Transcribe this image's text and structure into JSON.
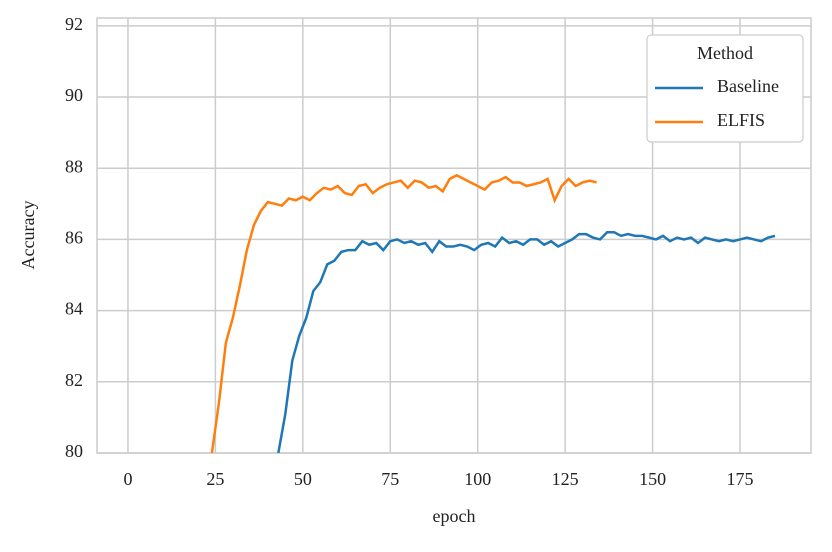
{
  "chart_data": {
    "type": "line",
    "x_label": "epoch",
    "y_label": "Accuracy",
    "xlim": [
      -8.85,
      195.3
    ],
    "ylim": [
      80,
      92.22
    ],
    "xticks": [
      0,
      25,
      50,
      75,
      100,
      125,
      150,
      175
    ],
    "yticks": [
      80,
      82,
      84,
      86,
      88,
      90,
      92
    ],
    "grid": true,
    "legend_title": "Method",
    "legend_position": "upper right",
    "series": [
      {
        "name": "Baseline",
        "color": "#1f77b4",
        "x": [
          43,
          45,
          47,
          49,
          51,
          53,
          55,
          57,
          59,
          61,
          63,
          65,
          67,
          69,
          71,
          73,
          75,
          77,
          79,
          81,
          83,
          85,
          87,
          89,
          91,
          93,
          95,
          97,
          99,
          101,
          103,
          105,
          107,
          109,
          111,
          113,
          115,
          117,
          119,
          121,
          123,
          125,
          127,
          129,
          131,
          133,
          135,
          137,
          139,
          141,
          143,
          145,
          147,
          149,
          151,
          153,
          155,
          157,
          159,
          161,
          163,
          165,
          167,
          169,
          171,
          173,
          175,
          177,
          179,
          181,
          183,
          185
        ],
        "values": [
          80.0,
          81.1,
          82.6,
          83.3,
          83.8,
          84.55,
          84.8,
          85.3,
          85.4,
          85.65,
          85.7,
          85.7,
          85.95,
          85.85,
          85.9,
          85.7,
          85.95,
          86.0,
          85.9,
          85.95,
          85.85,
          85.9,
          85.65,
          85.95,
          85.8,
          85.8,
          85.85,
          85.8,
          85.7,
          85.85,
          85.9,
          85.8,
          86.05,
          85.9,
          85.95,
          85.85,
          86.0,
          86.0,
          85.85,
          85.95,
          85.8,
          85.9,
          86.0,
          86.15,
          86.15,
          86.05,
          86.0,
          86.2,
          86.2,
          86.1,
          86.15,
          86.1,
          86.1,
          86.05,
          86.0,
          86.1,
          85.95,
          86.05,
          86.0,
          86.05,
          85.9,
          86.05,
          86.0,
          85.95,
          86.0,
          85.95,
          86.0,
          86.05,
          86.0,
          85.95,
          86.05,
          86.1
        ]
      },
      {
        "name": "ELFIS",
        "color": "#ff7f0e",
        "x": [
          24,
          26,
          28,
          30,
          32,
          34,
          36,
          38,
          40,
          42,
          44,
          46,
          48,
          50,
          52,
          54,
          56,
          58,
          60,
          62,
          64,
          66,
          68,
          70,
          72,
          74,
          76,
          78,
          80,
          82,
          84,
          86,
          88,
          90,
          92,
          94,
          96,
          98,
          100,
          102,
          104,
          106,
          108,
          110,
          112,
          114,
          116,
          118,
          120,
          122,
          124,
          126,
          128,
          130,
          132,
          134
        ],
        "values": [
          80.0,
          81.4,
          83.1,
          83.8,
          84.7,
          85.7,
          86.4,
          86.8,
          87.05,
          87.0,
          86.95,
          87.15,
          87.1,
          87.2,
          87.1,
          87.3,
          87.45,
          87.4,
          87.5,
          87.3,
          87.25,
          87.5,
          87.55,
          87.3,
          87.45,
          87.55,
          87.6,
          87.65,
          87.45,
          87.65,
          87.6,
          87.45,
          87.5,
          87.35,
          87.7,
          87.8,
          87.7,
          87.6,
          87.5,
          87.4,
          87.6,
          87.65,
          87.75,
          87.6,
          87.6,
          87.5,
          87.55,
          87.6,
          87.7,
          87.1,
          87.5,
          87.7,
          87.5,
          87.6,
          87.65,
          87.6
        ]
      }
    ]
  }
}
